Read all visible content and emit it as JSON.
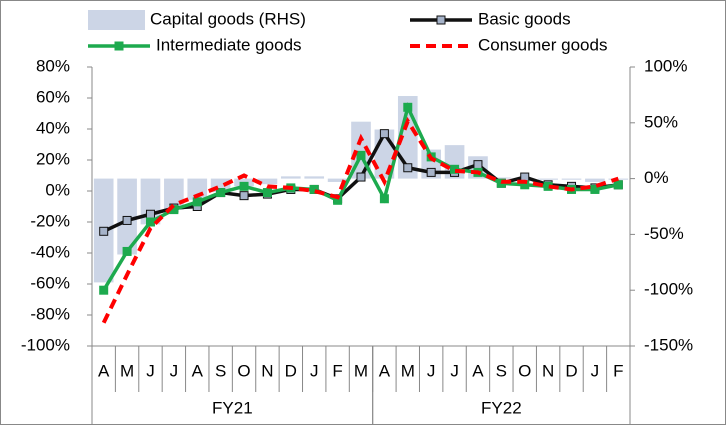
{
  "chart_data": {
    "type": "combo",
    "categories": [
      "A",
      "M",
      "J",
      "J",
      "A",
      "S",
      "O",
      "N",
      "D",
      "J",
      "F",
      "M",
      "A",
      "M",
      "J",
      "J",
      "A",
      "S",
      "O",
      "N",
      "D",
      "J",
      "F"
    ],
    "groups": [
      {
        "name": "FY21",
        "size": 12
      },
      {
        "name": "FY22",
        "size": 11
      }
    ],
    "series": [
      {
        "name": "Capital goods (RHS)",
        "type": "bar",
        "axis": "y2",
        "color": "#ccd5e6",
        "values": [
          -93,
          -68,
          -41,
          -28,
          -19,
          -12,
          -7,
          -5,
          2,
          2,
          -3,
          51,
          44,
          74,
          26,
          30,
          20,
          1,
          -2,
          -1,
          -1,
          -3,
          -1
        ]
      },
      {
        "name": "Basic goods",
        "type": "line",
        "color": "#111111",
        "marker_color": "#a6b3c9",
        "values": [
          -26,
          -19,
          -15,
          -11,
          -10,
          -1,
          -3,
          -2,
          1,
          1,
          -5,
          9,
          37,
          15,
          12,
          12,
          17,
          5,
          9,
          4,
          3,
          2,
          4
        ]
      },
      {
        "name": "Intermediate goods",
        "type": "line",
        "color": "#1daa4e",
        "marker_color": "#1daa4e",
        "values": [
          -64,
          -39,
          -20,
          -12,
          -7,
          -1,
          3,
          -1,
          2,
          1,
          -6,
          23,
          -5,
          54,
          22,
          14,
          12,
          5,
          4,
          3,
          1,
          1,
          4
        ]
      },
      {
        "name": "Consumer goods",
        "type": "line",
        "dashed": true,
        "color": "#ff0000",
        "values": [
          -85,
          -54,
          -24,
          -9,
          -3,
          3,
          10,
          3,
          2,
          0,
          -4,
          34,
          6,
          45,
          21,
          13,
          12,
          6,
          6,
          3,
          1,
          3,
          8
        ]
      }
    ],
    "ylim": [
      -100,
      80
    ],
    "yticks": [
      {
        "value": -100,
        "label": "-100%"
      },
      {
        "value": -80,
        "label": "-80%"
      },
      {
        "value": -60,
        "label": "-60%"
      },
      {
        "value": -40,
        "label": "-40%"
      },
      {
        "value": -20,
        "label": "-20%"
      },
      {
        "value": 0,
        "label": "0%"
      },
      {
        "value": 20,
        "label": "20%"
      },
      {
        "value": 40,
        "label": "40%"
      },
      {
        "value": 60,
        "label": "60%"
      },
      {
        "value": 80,
        "label": "80%"
      }
    ],
    "y2lim": [
      -150,
      100
    ],
    "y2ticks": [
      {
        "value": -150,
        "label": "-150%"
      },
      {
        "value": -100,
        "label": "-100%"
      },
      {
        "value": -50,
        "label": "-50%"
      },
      {
        "value": 0,
        "label": "0%"
      },
      {
        "value": 50,
        "label": "50%"
      },
      {
        "value": 100,
        "label": "100%"
      }
    ]
  }
}
